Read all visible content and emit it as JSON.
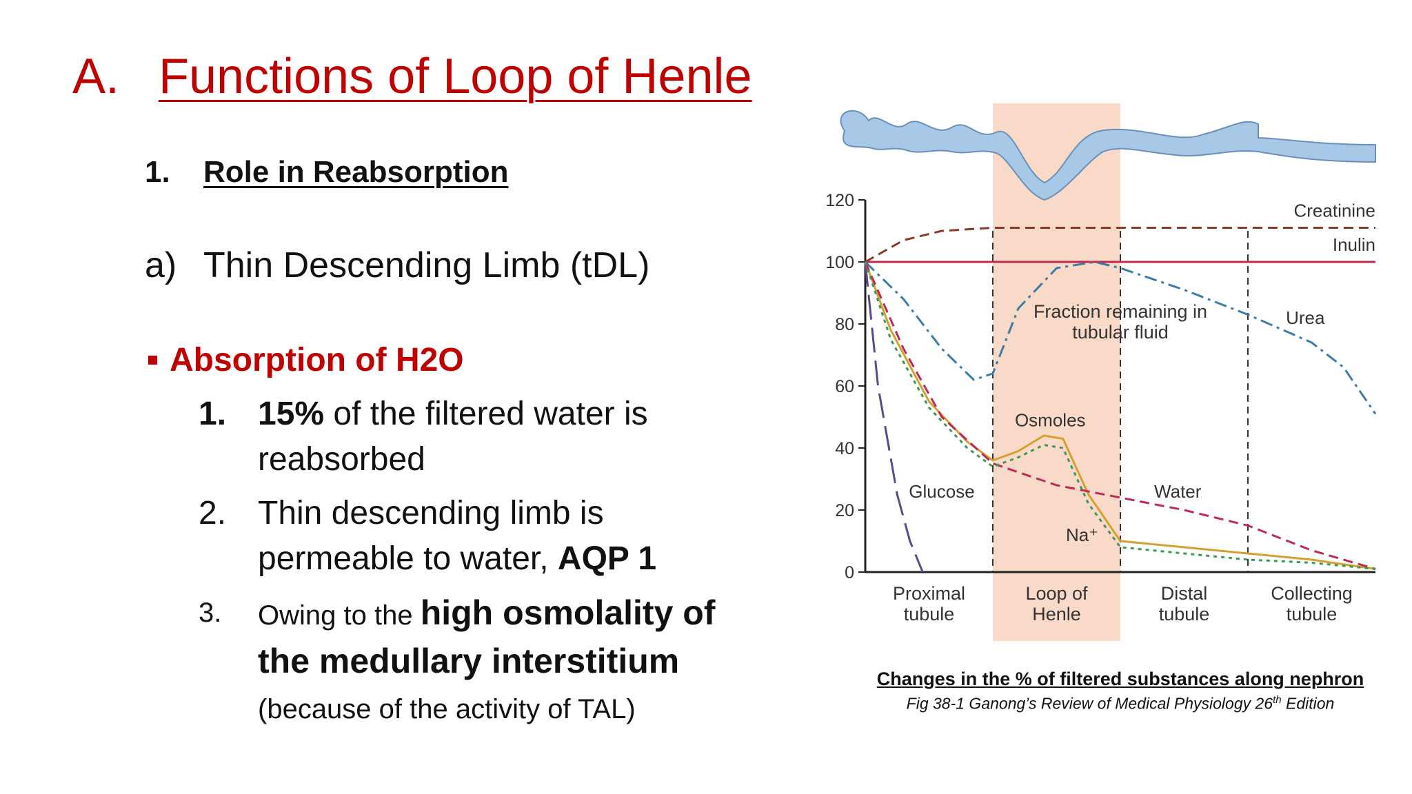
{
  "slide": {
    "title_number": "A.",
    "title_text": "Functions of Loop of Henle",
    "section_number": "1.",
    "section_title": "Role in Reabsorption",
    "sub_letter": "a)",
    "sub_title": "Thin Descending Limb (tDL)",
    "bullet": "Absorption of H2O",
    "items": [
      {
        "num": "1.",
        "bold": "15%",
        "text": " of the filtered water is reabsorbed"
      },
      {
        "num": "2.",
        "text": "Thin descending limb is permeable to water, ",
        "bold": "AQP 1"
      },
      {
        "num": "3.",
        "small": "Owing to the ",
        "bold": "high osmolality of the medullary interstitium",
        "tail": "(because of the activity of TAL)"
      }
    ],
    "caption_title": "Changes in the % of filtered substances along nephron",
    "caption_source_pre": "Fig 38-1 Ganong’s Review of Medical Physiology 26",
    "caption_source_sup": "th",
    "caption_source_post": " Edition"
  },
  "colors": {
    "title_red": "#c00000",
    "loop_band": "#f9d9c8",
    "tubule_blue": "#a8c8e8",
    "creatinine": "#8b3a2a",
    "inulin": "#c0284e",
    "urea": "#3a7ca5",
    "glucose": "#5a4a8a",
    "osmoles": "#d4a030",
    "water": "#c0285a",
    "sodium": "#3a9a50"
  },
  "chart_data": {
    "type": "line",
    "title": "",
    "center_label": [
      "Fraction remaining in",
      "tubular fluid"
    ],
    "ylim": [
      0,
      120
    ],
    "yticks": [
      0,
      20,
      40,
      60,
      80,
      100,
      120
    ],
    "segments": [
      {
        "label": [
          "Proximal",
          "tubule"
        ],
        "range": [
          0,
          1
        ]
      },
      {
        "label": [
          "Loop of",
          "Henle"
        ],
        "range": [
          1,
          2
        ],
        "highlight": true
      },
      {
        "label": [
          "Distal",
          "tubule"
        ],
        "range": [
          2,
          3
        ]
      },
      {
        "label": [
          "Collecting",
          "tubule"
        ],
        "range": [
          3,
          4
        ]
      }
    ],
    "series": [
      {
        "name": "Creatinine",
        "style": "dashed",
        "colorKey": "creatinine",
        "x": [
          0,
          0.3,
          0.6,
          1,
          2,
          3,
          4
        ],
        "y": [
          100,
          107,
          110,
          111,
          111,
          111,
          111
        ]
      },
      {
        "name": "Inulin",
        "style": "solid",
        "colorKey": "inulin",
        "x": [
          0,
          4
        ],
        "y": [
          100,
          100
        ]
      },
      {
        "name": "Urea",
        "style": "dashdot",
        "colorKey": "urea",
        "x": [
          0,
          0.3,
          0.6,
          0.85,
          1.0,
          1.2,
          1.5,
          1.8,
          2.0,
          2.5,
          3.0,
          3.5,
          3.75,
          4.0
        ],
        "y": [
          100,
          88,
          72,
          62,
          64,
          85,
          98,
          100,
          98,
          91,
          83,
          74,
          66,
          51
        ]
      },
      {
        "name": "Glucose",
        "style": "longdash",
        "colorKey": "glucose",
        "x": [
          0,
          0.1,
          0.25,
          0.35,
          0.45
        ],
        "y": [
          100,
          60,
          25,
          10,
          0
        ]
      },
      {
        "name": "Osmoles",
        "style": "solid",
        "colorKey": "osmoles",
        "x": [
          0,
          0.2,
          0.5,
          0.8,
          1.0,
          1.2,
          1.4,
          1.55,
          1.75,
          2.0,
          2.5,
          3.0,
          3.5,
          4.0
        ],
        "y": [
          100,
          78,
          55,
          42,
          36,
          39,
          44,
          43,
          25,
          10,
          8,
          6,
          4,
          1
        ]
      },
      {
        "name": "Water",
        "style": "dashed",
        "colorKey": "water",
        "x": [
          0,
          0.3,
          0.6,
          1.0,
          1.5,
          2.0,
          2.5,
          3.0,
          3.5,
          4.0
        ],
        "y": [
          100,
          72,
          50,
          35,
          28,
          24,
          20,
          15,
          7,
          1
        ]
      },
      {
        "name": "Na⁺",
        "style": "dotted",
        "colorKey": "sodium",
        "x": [
          0,
          0.2,
          0.5,
          0.8,
          1.0,
          1.2,
          1.4,
          1.55,
          1.75,
          2.0,
          2.5,
          3.0,
          3.5,
          4.0
        ],
        "y": [
          100,
          75,
          53,
          40,
          34,
          37,
          41,
          40,
          22,
          8,
          6,
          4,
          3,
          1
        ]
      }
    ],
    "annotations": [
      {
        "text": "Creatinine",
        "x": 4.0,
        "y": 111,
        "anchor": "end",
        "dy": -16
      },
      {
        "text": "Inulin",
        "x": 4.0,
        "y": 100,
        "anchor": "end",
        "dy": -16
      },
      {
        "text": "Urea",
        "x": 3.45,
        "y": 80,
        "anchor": "middle",
        "dy": 0
      },
      {
        "text": "Osmoles",
        "x": 1.45,
        "y": 47,
        "anchor": "middle",
        "dy": 0
      },
      {
        "text": "Glucose",
        "x": 0.6,
        "y": 24,
        "anchor": "middle",
        "dy": 0
      },
      {
        "text": "Water",
        "x": 2.45,
        "y": 24,
        "anchor": "middle",
        "dy": 0
      },
      {
        "text": "Na⁺",
        "x": 1.7,
        "y": 10,
        "anchor": "middle",
        "dy": 0
      }
    ]
  }
}
